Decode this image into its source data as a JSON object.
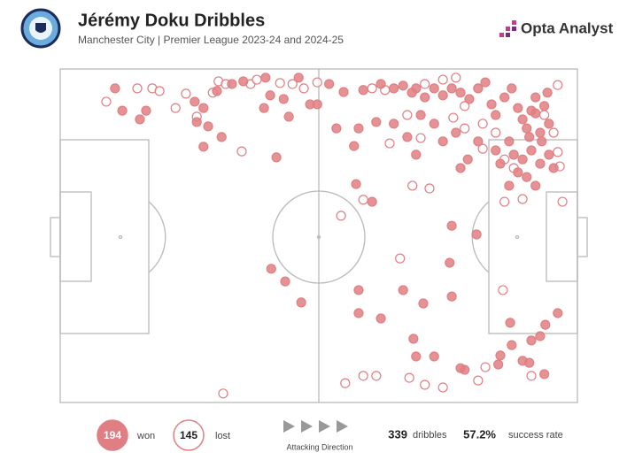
{
  "chart_data": {
    "type": "scatter",
    "title": "Jérémy Doku Dribbles",
    "subtitle": "Manchester City | Premier League 2023-24 and 2024-25",
    "brand": "Opta Analyst",
    "xlim": [
      0,
      100
    ],
    "ylim": [
      0,
      100
    ],
    "series": [
      {
        "name": "won",
        "count": 194,
        "color": "#e07f83",
        "filled": true,
        "x": [
          10.6,
          12,
          15.4,
          16.6,
          26,
          27.7,
          28.6,
          26.4,
          30.3,
          33.2,
          35.4,
          39.7,
          40.6,
          39.4,
          43.2,
          44.2,
          46.1,
          48.3,
          49.7,
          31.2,
          27.7,
          41.8,
          40.8,
          43.5,
          46.6,
          52,
          54.8,
          58.6,
          62,
          64.5,
          66.3,
          68,
          68.8,
          70.5,
          72.3,
          74,
          75.7,
          77.4,
          79.1,
          80.8,
          82.2,
          83.4,
          84.2,
          85.9,
          87.3,
          88.5,
          89.4,
          90.2,
          91.1,
          91.9,
          92.8,
          93.6,
          94.5,
          86.8,
          87.7,
          89.4,
          91.1,
          92.8,
          94.5,
          95.4,
          88.5,
          86.8,
          90.2,
          91.9,
          84.2,
          85.1,
          80.8,
          78.8,
          76.5,
          74,
          72.3,
          69.7,
          67.1,
          64.5,
          61.1,
          57.7,
          53.4,
          56.8,
          57.2,
          60.3,
          68.8,
          77.4,
          75.7,
          80.5,
          75.3,
          75.7,
          70.2,
          66.3,
          57.7,
          57.7,
          62,
          68.3,
          68.8,
          72.3,
          78.2,
          85.1,
          87.3,
          91.1,
          89.4,
          90.7,
          87,
          93.8,
          96.2,
          93.6,
          84.7,
          77.4,
          92.8,
          90.7,
          93.1,
          91.9,
          94.2
        ],
        "y": [
          94.2,
          87.5,
          84.9,
          87.5,
          90.2,
          88.3,
          82.8,
          84.1,
          93.4,
          95.5,
          96.3,
          97.4,
          92.1,
          88.3,
          91,
          85.7,
          97.4,
          89.4,
          89.4,
          79.6,
          76.7,
          73.5,
          40.1,
          36.3,
          30,
          95.5,
          93.1,
          93.7,
          95.5,
          94.2,
          95,
          92.9,
          94.2,
          91.5,
          94.2,
          92.1,
          94.2,
          92.9,
          91,
          94.2,
          96,
          89.4,
          86.2,
          91.5,
          94.2,
          88.3,
          84.9,
          82.2,
          87.5,
          91.5,
          80.9,
          88.9,
          83.6,
          78.3,
          74.3,
          72.9,
          75.6,
          71.6,
          74.3,
          70.3,
          69,
          65,
          67.6,
          65,
          75.6,
          71.6,
          78.3,
          72.9,
          80.9,
          78.3,
          83.6,
          86.2,
          79.6,
          83.6,
          84.1,
          82.2,
          82.2,
          76.9,
          65.5,
          60.2,
          74.3,
          70.3,
          53,
          50.4,
          41.9,
          31.8,
          29.7,
          33.7,
          33.7,
          26.8,
          25.2,
          19.1,
          13.8,
          13.8,
          9.8,
          14.1,
          17.2,
          18.6,
          12.5,
          11.9,
          23.9,
          23.3,
          26.8,
          8.5,
          11.4,
          10.3,
          19.9,
          79.6,
          78.3,
          86.7,
          92.9
        ]
      },
      {
        "name": "lost",
        "count": 145,
        "color": "#e07f83",
        "filled": false,
        "x": [
          8.9,
          14.9,
          17.8,
          19.2,
          22.3,
          24.3,
          26.4,
          29.5,
          30.6,
          32,
          36.8,
          38,
          42.5,
          44.9,
          47.1,
          49.7,
          35.1,
          31.5,
          54.3,
          58.6,
          65.7,
          68.1,
          71.4,
          63.7,
          67.1,
          69.7,
          76,
          78.2,
          81.7,
          84.2,
          85.9,
          87.7,
          96.2,
          96.6,
          97.1,
          85.9,
          89.4,
          93.6,
          95.4,
          74,
          76.5,
          70.5,
          60.3,
          58.6,
          61.1,
          55.1,
          67.5,
          70.5,
          74,
          80.8,
          82.2,
          85.6,
          91.1,
          96.2,
          81.7,
          78.2,
          62.8
        ],
        "y": [
          90.2,
          94.2,
          94.2,
          93.4,
          88.3,
          92.6,
          85.7,
          92.9,
          96.3,
          95.5,
          95.5,
          96.8,
          95.8,
          95.5,
          94.2,
          96,
          75.3,
          2.7,
          56,
          60.8,
          43.2,
          65,
          64.2,
          77.7,
          86.2,
          79.3,
          85.4,
          88.9,
          83.6,
          80.9,
          72.9,
          70.3,
          95.2,
          70.8,
          60.2,
          60.2,
          61,
          86.2,
          80.9,
          96.8,
          97.4,
          95.5,
          94.2,
          8,
          8,
          5.8,
          7.4,
          5.3,
          4.5,
          6.6,
          10.6,
          33.7,
          8,
          75.1,
          76.1,
          82.2,
          93.7
        ]
      }
    ],
    "direction_label": "Attacking Direction",
    "total": {
      "value": 339,
      "label": "dribbles"
    },
    "success_rate": {
      "value": 57.2,
      "label": "57.2%",
      "caption": "success rate"
    }
  }
}
